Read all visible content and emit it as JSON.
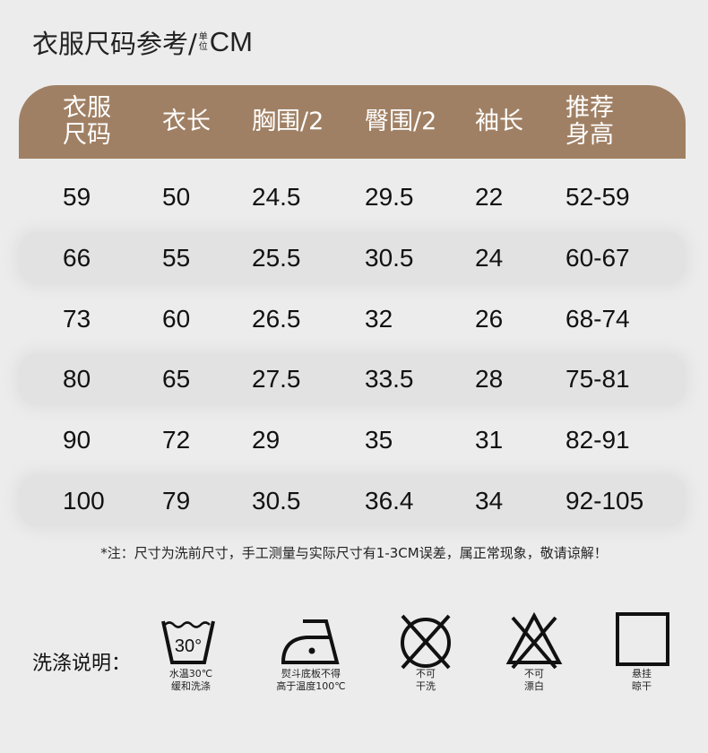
{
  "title": {
    "main": "衣服尺码参考/",
    "unit_small_1": "单",
    "unit_small_2": "位",
    "unit": "CM"
  },
  "colors": {
    "header_bg": "#a08064",
    "page_bg": "#ececec",
    "stripe": "#e2e2e2"
  },
  "table": {
    "headers": [
      [
        "衣服",
        "尺码"
      ],
      [
        "衣长"
      ],
      [
        "胸围/2"
      ],
      [
        "臀围/2"
      ],
      [
        "袖长"
      ],
      [
        "推荐",
        "身高"
      ]
    ],
    "rows": [
      [
        "59",
        "50",
        "24.5",
        "29.5",
        "22",
        "52-59"
      ],
      [
        "66",
        "55",
        "25.5",
        "30.5",
        "24",
        "60-67"
      ],
      [
        "73",
        "60",
        "26.5",
        "32",
        "26",
        "68-74"
      ],
      [
        "80",
        "65",
        "27.5",
        "33.5",
        "28",
        "75-81"
      ],
      [
        "90",
        "72",
        "29",
        "35",
        "31",
        "82-91"
      ],
      [
        "100",
        "79",
        "30.5",
        "36.4",
        "34",
        "92-105"
      ]
    ]
  },
  "note": "*注：尺寸为洗前尺寸，手工测量与实际尺寸有1-3CM误差，属正常现象，敬请谅解！",
  "care": {
    "label": "洗涤说明：",
    "items": [
      {
        "icon": "wash-30-icon",
        "text": "30°",
        "caption": [
          "水温30℃",
          "缓和洗涤"
        ]
      },
      {
        "icon": "iron-low-icon",
        "caption": [
          "熨斗底板不得",
          "高于温度100℃"
        ]
      },
      {
        "icon": "no-dry-clean-icon",
        "caption": [
          "不可",
          "干洗"
        ]
      },
      {
        "icon": "no-bleach-icon",
        "caption": [
          "不可",
          "漂白"
        ]
      },
      {
        "icon": "hang-dry-icon",
        "caption": [
          "悬挂",
          "晾干"
        ]
      }
    ]
  }
}
